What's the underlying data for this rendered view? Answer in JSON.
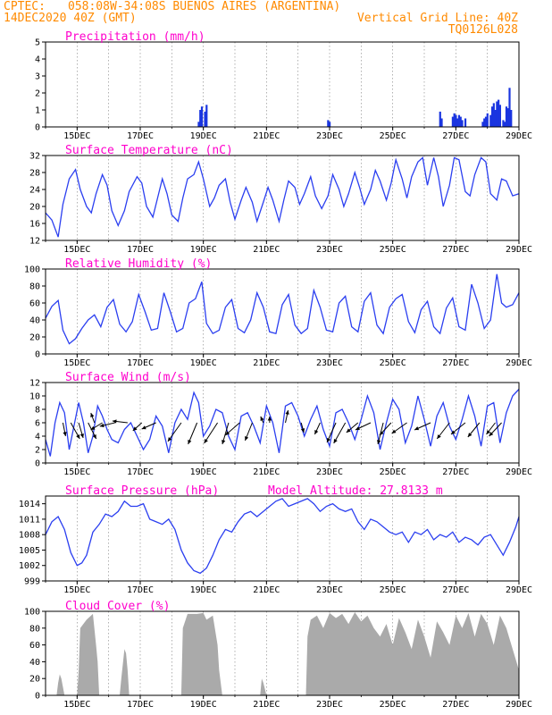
{
  "header": {
    "source": "CPTEC:",
    "location": "058:08W-34:08S  BUENOS AIRES (ARGENTINA)",
    "date": "14DEC2020 40Z (GMT)",
    "grid_note": "Vertical Grid Line: 40Z",
    "model": "TQ0126L028"
  },
  "colors": {
    "header": "#ff8a00",
    "title": "#ff00cc",
    "series": "#2b3ff0",
    "bars": "#1a35e0",
    "cloud": "#aaaaaa",
    "arrow": "#000000"
  },
  "x_axis": {
    "labels": [
      "15DEC",
      "17DEC",
      "19DEC",
      "21DEC",
      "23DEC",
      "25DEC",
      "27DEC",
      "29DEC"
    ],
    "label_days": [
      15,
      17,
      19,
      21,
      23,
      25,
      27,
      29
    ],
    "range_days": [
      14.0,
      29.0
    ]
  },
  "chart_data": [
    {
      "type": "bar",
      "title": "Precipitation (mm/h)",
      "ylim": [
        0,
        5
      ],
      "yticks": [
        "0",
        "1",
        "2",
        "3",
        "4",
        "5"
      ],
      "x_day": [
        18.85,
        18.9,
        18.95,
        19.05,
        19.1,
        22.95,
        23.0,
        26.5,
        26.55,
        26.9,
        26.95,
        27.0,
        27.05,
        27.1,
        27.15,
        27.2,
        27.3,
        27.85,
        27.9,
        27.95,
        28.0,
        28.1,
        28.15,
        28.2,
        28.25,
        28.3,
        28.35,
        28.4,
        28.5,
        28.55,
        28.6,
        28.65,
        28.7,
        28.75
      ],
      "values": [
        0.3,
        1.0,
        1.2,
        0.9,
        1.3,
        0.4,
        0.3,
        0.9,
        0.5,
        0.6,
        0.8,
        0.7,
        0.5,
        0.7,
        0.6,
        0.4,
        0.5,
        0.3,
        0.5,
        0.6,
        0.8,
        0.7,
        1.2,
        1.4,
        1.0,
        1.5,
        1.6,
        1.3,
        0.4,
        0.3,
        1.2,
        1.1,
        2.3,
        1.0
      ]
    },
    {
      "type": "line",
      "title": "Surface Temperature (nC)",
      "ylim": [
        12,
        32
      ],
      "yticks": [
        "12",
        "16",
        "20",
        "24",
        "28",
        "32"
      ],
      "x_day": [
        14.0,
        14.2,
        14.4,
        14.55,
        14.75,
        14.95,
        15.1,
        15.3,
        15.45,
        15.6,
        15.8,
        15.95,
        16.1,
        16.3,
        16.5,
        16.65,
        16.9,
        17.05,
        17.2,
        17.4,
        17.55,
        17.7,
        17.85,
        18.0,
        18.2,
        18.35,
        18.5,
        18.7,
        18.85,
        19.0,
        19.2,
        19.35,
        19.5,
        19.7,
        19.85,
        20.0,
        20.2,
        20.35,
        20.55,
        20.7,
        20.9,
        21.05,
        21.2,
        21.4,
        21.55,
        21.7,
        21.9,
        22.05,
        22.2,
        22.4,
        22.55,
        22.75,
        22.95,
        23.1,
        23.3,
        23.45,
        23.6,
        23.8,
        23.95,
        24.1,
        24.3,
        24.45,
        24.6,
        24.8,
        24.95,
        25.1,
        25.3,
        25.45,
        25.6,
        25.8,
        25.95,
        26.1,
        26.3,
        26.45,
        26.6,
        26.8,
        26.95,
        27.1,
        27.3,
        27.45,
        27.6,
        27.8,
        27.95,
        28.1,
        28.3,
        28.45,
        28.6,
        28.8,
        29.0
      ],
      "values": [
        18.5,
        16.8,
        12.8,
        20.5,
        26.5,
        28.7,
        24.0,
        20.0,
        18.5,
        23.0,
        27.5,
        25.0,
        19.0,
        15.5,
        19.0,
        23.5,
        27.0,
        25.5,
        20.0,
        17.5,
        22.0,
        26.5,
        23.0,
        18.0,
        16.5,
        22.0,
        26.5,
        27.5,
        30.5,
        26.5,
        20.0,
        22.0,
        25.0,
        26.5,
        21.0,
        17.0,
        21.5,
        24.5,
        21.0,
        16.5,
        21.0,
        24.5,
        21.5,
        16.5,
        21.5,
        26.0,
        24.5,
        20.5,
        23.0,
        27.0,
        22.5,
        19.5,
        22.5,
        27.5,
        24.0,
        20.0,
        23.0,
        28.0,
        24.5,
        20.5,
        24.0,
        28.5,
        26.0,
        21.5,
        25.5,
        31.0,
        26.5,
        22.0,
        27.0,
        30.5,
        31.5,
        25.0,
        31.5,
        27.0,
        20.0,
        25.0,
        31.5,
        31.0,
        23.5,
        22.5,
        27.5,
        31.5,
        30.5,
        23.0,
        21.5,
        26.5,
        26.0,
        22.5,
        23.0
      ]
    },
    {
      "type": "line",
      "title": "Relative Humidity (%)",
      "ylim": [
        0,
        100
      ],
      "yticks": [
        "0",
        "20",
        "40",
        "60",
        "80",
        "100"
      ],
      "x_day": [
        14.0,
        14.2,
        14.4,
        14.55,
        14.75,
        14.95,
        15.15,
        15.35,
        15.55,
        15.75,
        15.95,
        16.15,
        16.35,
        16.55,
        16.75,
        16.95,
        17.15,
        17.35,
        17.55,
        17.75,
        17.95,
        18.15,
        18.35,
        18.55,
        18.75,
        18.95,
        19.1,
        19.3,
        19.5,
        19.7,
        19.9,
        20.1,
        20.3,
        20.5,
        20.7,
        20.9,
        21.1,
        21.3,
        21.5,
        21.7,
        21.9,
        22.1,
        22.3,
        22.5,
        22.7,
        22.9,
        23.1,
        23.3,
        23.5,
        23.7,
        23.9,
        24.1,
        24.3,
        24.5,
        24.7,
        24.9,
        25.1,
        25.3,
        25.5,
        25.7,
        25.9,
        26.1,
        26.3,
        26.5,
        26.7,
        26.9,
        27.1,
        27.3,
        27.5,
        27.7,
        27.9,
        28.1,
        28.3,
        28.45,
        28.6,
        28.8,
        29.0
      ],
      "values": [
        42,
        56,
        63,
        28,
        12,
        18,
        30,
        40,
        46,
        32,
        55,
        64,
        35,
        26,
        38,
        70,
        50,
        28,
        30,
        72,
        50,
        26,
        30,
        60,
        65,
        85,
        36,
        24,
        28,
        55,
        64,
        30,
        25,
        40,
        72,
        55,
        26,
        24,
        58,
        70,
        34,
        24,
        30,
        75,
        55,
        28,
        26,
        60,
        68,
        32,
        26,
        62,
        72,
        34,
        24,
        55,
        65,
        70,
        38,
        25,
        52,
        62,
        32,
        24,
        54,
        66,
        32,
        28,
        82,
        60,
        30,
        40,
        94,
        60,
        55,
        58,
        72
      ]
    },
    {
      "type": "line",
      "title": "Surface Wind (m/s)",
      "ylim": [
        0,
        12
      ],
      "yticks": [
        "0",
        "2",
        "4",
        "6",
        "8",
        "10",
        "12"
      ],
      "x_day": [
        14.0,
        14.15,
        14.3,
        14.45,
        14.6,
        14.75,
        14.9,
        15.05,
        15.2,
        15.35,
        15.5,
        15.65,
        15.8,
        15.95,
        16.1,
        16.3,
        16.5,
        16.7,
        16.9,
        17.1,
        17.3,
        17.5,
        17.7,
        17.9,
        18.1,
        18.3,
        18.5,
        18.7,
        18.85,
        19.0,
        19.2,
        19.4,
        19.6,
        19.8,
        20.0,
        20.2,
        20.4,
        20.6,
        20.8,
        21.0,
        21.2,
        21.4,
        21.6,
        21.8,
        22.0,
        22.2,
        22.4,
        22.6,
        22.8,
        23.0,
        23.2,
        23.4,
        23.6,
        23.8,
        24.0,
        24.2,
        24.4,
        24.6,
        24.8,
        25.0,
        25.2,
        25.4,
        25.6,
        25.8,
        26.0,
        26.2,
        26.4,
        26.6,
        26.8,
        27.0,
        27.2,
        27.4,
        27.6,
        27.8,
        28.0,
        28.2,
        28.4,
        28.6,
        28.8,
        29.0
      ],
      "values": [
        3.5,
        1.0,
        6.0,
        9.0,
        7.5,
        2.0,
        5.5,
        9.0,
        6.0,
        1.5,
        4.0,
        8.5,
        7.0,
        5.0,
        3.5,
        3.0,
        5.0,
        6.0,
        4.0,
        2.0,
        3.5,
        7.0,
        5.5,
        1.5,
        6.0,
        8.0,
        6.5,
        10.5,
        9.0,
        4.0,
        5.5,
        8.0,
        7.5,
        4.0,
        2.0,
        7.0,
        7.5,
        5.5,
        3.0,
        8.5,
        6.0,
        1.5,
        8.5,
        9.0,
        7.0,
        4.0,
        6.5,
        8.5,
        5.0,
        2.5,
        7.5,
        8.0,
        6.0,
        3.5,
        6.5,
        10.0,
        7.5,
        2.0,
        6.0,
        9.5,
        8.0,
        3.0,
        5.5,
        10.0,
        6.5,
        2.5,
        7.0,
        9.0,
        5.5,
        3.5,
        6.5,
        10.0,
        7.0,
        2.5,
        8.5,
        9.0,
        3.0,
        7.5,
        10.0,
        11.0
      ]
    },
    {
      "type": "line",
      "title": "Surface Pressure (hPa)",
      "annotation": "Model Altitude: 27.8133 m",
      "ylim": [
        999,
        1015.5
      ],
      "yticks": [
        "999",
        "1002",
        "1005",
        "1008",
        "1011",
        "1014"
      ],
      "x_day": [
        14.0,
        14.2,
        14.4,
        14.6,
        14.8,
        15.0,
        15.15,
        15.3,
        15.5,
        15.7,
        15.9,
        16.1,
        16.3,
        16.5,
        16.7,
        16.9,
        17.1,
        17.3,
        17.5,
        17.7,
        17.9,
        18.1,
        18.3,
        18.5,
        18.7,
        18.9,
        19.1,
        19.3,
        19.5,
        19.7,
        19.9,
        20.1,
        20.3,
        20.5,
        20.7,
        20.9,
        21.1,
        21.3,
        21.5,
        21.7,
        21.9,
        22.1,
        22.3,
        22.5,
        22.7,
        22.9,
        23.1,
        23.3,
        23.5,
        23.7,
        23.9,
        24.1,
        24.3,
        24.5,
        24.7,
        24.9,
        25.1,
        25.3,
        25.5,
        25.7,
        25.9,
        26.1,
        26.3,
        26.5,
        26.7,
        26.9,
        27.1,
        27.3,
        27.5,
        27.7,
        27.9,
        28.1,
        28.3,
        28.5,
        28.7,
        28.9,
        29.0
      ],
      "values": [
        1008.0,
        1010.5,
        1011.5,
        1009.0,
        1004.5,
        1002.0,
        1002.5,
        1004.0,
        1008.5,
        1010.0,
        1012.0,
        1011.5,
        1012.5,
        1014.5,
        1013.5,
        1013.5,
        1014.0,
        1011.0,
        1010.5,
        1010.0,
        1011.0,
        1009.0,
        1005.0,
        1002.5,
        1001.0,
        1000.5,
        1001.5,
        1004.0,
        1007.0,
        1009.0,
        1008.5,
        1010.5,
        1012.0,
        1012.5,
        1011.5,
        1012.5,
        1013.5,
        1014.5,
        1015.0,
        1013.5,
        1014.0,
        1014.5,
        1015.0,
        1014.0,
        1012.5,
        1013.5,
        1014.0,
        1013.0,
        1012.5,
        1013.0,
        1010.5,
        1009.0,
        1011.0,
        1010.5,
        1009.5,
        1008.5,
        1008.0,
        1008.5,
        1006.5,
        1008.5,
        1008.0,
        1009.0,
        1007.0,
        1008.0,
        1007.5,
        1008.5,
        1006.5,
        1007.5,
        1007.0,
        1006.0,
        1007.5,
        1008.0,
        1006.0,
        1004.0,
        1006.5,
        1009.5,
        1011.5
      ]
    },
    {
      "type": "area",
      "title": "Cloud Cover (%)",
      "ylim": [
        0,
        100
      ],
      "yticks": [
        "0",
        "20",
        "40",
        "60",
        "80",
        "100"
      ],
      "x_day": [
        14.0,
        14.35,
        14.4,
        14.45,
        14.5,
        14.55,
        14.6,
        15.0,
        15.05,
        15.1,
        15.3,
        15.5,
        15.6,
        15.65,
        15.7,
        16.35,
        16.4,
        16.5,
        16.55,
        16.6,
        16.65,
        17.0,
        17.5,
        18.0,
        18.3,
        18.35,
        18.5,
        18.8,
        19.0,
        19.1,
        19.3,
        19.45,
        19.5,
        19.6,
        20.0,
        20.5,
        20.8,
        20.85,
        20.9,
        21.0,
        21.5,
        22.0,
        22.25,
        22.3,
        22.4,
        22.6,
        22.8,
        23.0,
        23.2,
        23.4,
        23.6,
        23.8,
        24.0,
        24.2,
        24.4,
        24.6,
        24.8,
        25.0,
        25.2,
        25.4,
        25.6,
        25.8,
        26.0,
        26.2,
        26.4,
        26.6,
        26.8,
        27.0,
        27.2,
        27.4,
        27.6,
        27.8,
        28.0,
        28.2,
        28.4,
        28.6,
        28.8,
        29.0
      ],
      "values": [
        0,
        0,
        15,
        25,
        20,
        10,
        0,
        0,
        30,
        80,
        90,
        97,
        60,
        40,
        0,
        0,
        20,
        55,
        50,
        30,
        0,
        0,
        0,
        0,
        0,
        80,
        97,
        97,
        98,
        90,
        95,
        60,
        30,
        0,
        0,
        0,
        0,
        20,
        15,
        0,
        0,
        0,
        0,
        70,
        90,
        95,
        80,
        98,
        92,
        97,
        85,
        99,
        88,
        95,
        80,
        70,
        85,
        60,
        92,
        75,
        55,
        90,
        70,
        45,
        88,
        75,
        60,
        95,
        80,
        98,
        70,
        97,
        85,
        60,
        95,
        80,
        55,
        30
      ]
    }
  ],
  "wind_arrows": [
    {
      "day": 14.55,
      "u": 3,
      "v": -15
    },
    {
      "day": 14.8,
      "u": 10,
      "v": -18
    },
    {
      "day": 15.05,
      "u": 5,
      "v": -17
    },
    {
      "day": 15.35,
      "u": 9,
      "v": -18
    },
    {
      "day": 15.55,
      "u": -4,
      "v": 11
    },
    {
      "day": 15.8,
      "u": -13,
      "v": -8
    },
    {
      "day": 16.2,
      "u": -17,
      "v": -4
    },
    {
      "day": 16.6,
      "u": -17,
      "v": 2
    },
    {
      "day": 17.05,
      "u": -10,
      "v": -9
    },
    {
      "day": 17.5,
      "u": -16,
      "v": -7
    },
    {
      "day": 18.3,
      "u": -15,
      "v": -21
    },
    {
      "day": 18.8,
      "u": -10,
      "v": -24
    },
    {
      "day": 19.45,
      "u": -15,
      "v": -23
    },
    {
      "day": 19.8,
      "u": -7,
      "v": -24
    },
    {
      "day": 20.15,
      "u": -16,
      "v": -14
    },
    {
      "day": 20.55,
      "u": -8,
      "v": -20
    },
    {
      "day": 20.9,
      "u": -3,
      "v": 7
    },
    {
      "day": 21.1,
      "u": 0,
      "v": 7
    },
    {
      "day": 21.6,
      "u": 3,
      "v": 14
    },
    {
      "day": 22.1,
      "u": 3,
      "v": -11
    },
    {
      "day": 22.7,
      "u": -6,
      "v": -13
    },
    {
      "day": 23.2,
      "u": -10,
      "v": -22
    },
    {
      "day": 23.5,
      "u": -13,
      "v": -23
    },
    {
      "day": 23.9,
      "u": -13,
      "v": -11
    },
    {
      "day": 24.3,
      "u": -17,
      "v": -8
    },
    {
      "day": 24.7,
      "u": -6,
      "v": -24
    },
    {
      "day": 24.95,
      "u": -13,
      "v": -14
    },
    {
      "day": 25.45,
      "u": -17,
      "v": -12
    },
    {
      "day": 26.2,
      "u": -18,
      "v": -8
    },
    {
      "day": 26.8,
      "u": -14,
      "v": -18
    },
    {
      "day": 27.3,
      "u": -16,
      "v": -13
    },
    {
      "day": 27.75,
      "u": -13,
      "v": -16
    },
    {
      "day": 28.25,
      "u": -10,
      "v": -13
    },
    {
      "day": 28.45,
      "u": -14,
      "v": -15
    }
  ]
}
